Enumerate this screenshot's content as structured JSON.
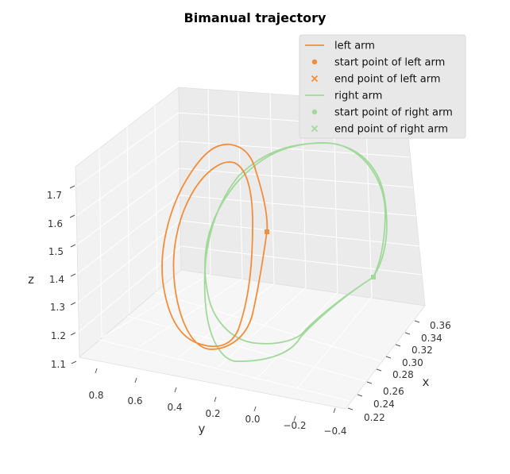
{
  "chart_data": {
    "type": "line",
    "projection": "3d",
    "title": "Bimanual trajectory",
    "xlabel": "x",
    "ylabel": "y",
    "zlabel": "z",
    "x_ticks": [
      "0.22",
      "0.24",
      "0.26",
      "0.28",
      "0.30",
      "0.32",
      "0.34",
      "0.36"
    ],
    "y_ticks": [
      "0.8",
      "0.6",
      "0.4",
      "0.2",
      "0.0",
      "−0.2",
      "−0.4"
    ],
    "z_ticks": [
      "1.1",
      "1.2",
      "1.3",
      "1.4",
      "1.5",
      "1.6",
      "1.7"
    ],
    "grid": true,
    "legend_position": "top-right",
    "legend": [
      {
        "label": "left arm",
        "kind": "line",
        "color": "#f28e3b"
      },
      {
        "label": "start point of left arm",
        "kind": "dot",
        "color": "#f28e3b"
      },
      {
        "label": "end point of left arm",
        "kind": "cross",
        "color": "#f28e3b"
      },
      {
        "label": "right arm",
        "kind": "line",
        "color": "#a1d99b"
      },
      {
        "label": "start point of right arm",
        "kind": "dot",
        "color": "#a1d99b"
      },
      {
        "label": "end point of right arm",
        "kind": "cross",
        "color": "#a1d99b"
      }
    ],
    "series": [
      {
        "name": "left arm",
        "color": "#f28e3b"
      },
      {
        "name": "right arm",
        "color": "#a1d99b"
      }
    ]
  }
}
